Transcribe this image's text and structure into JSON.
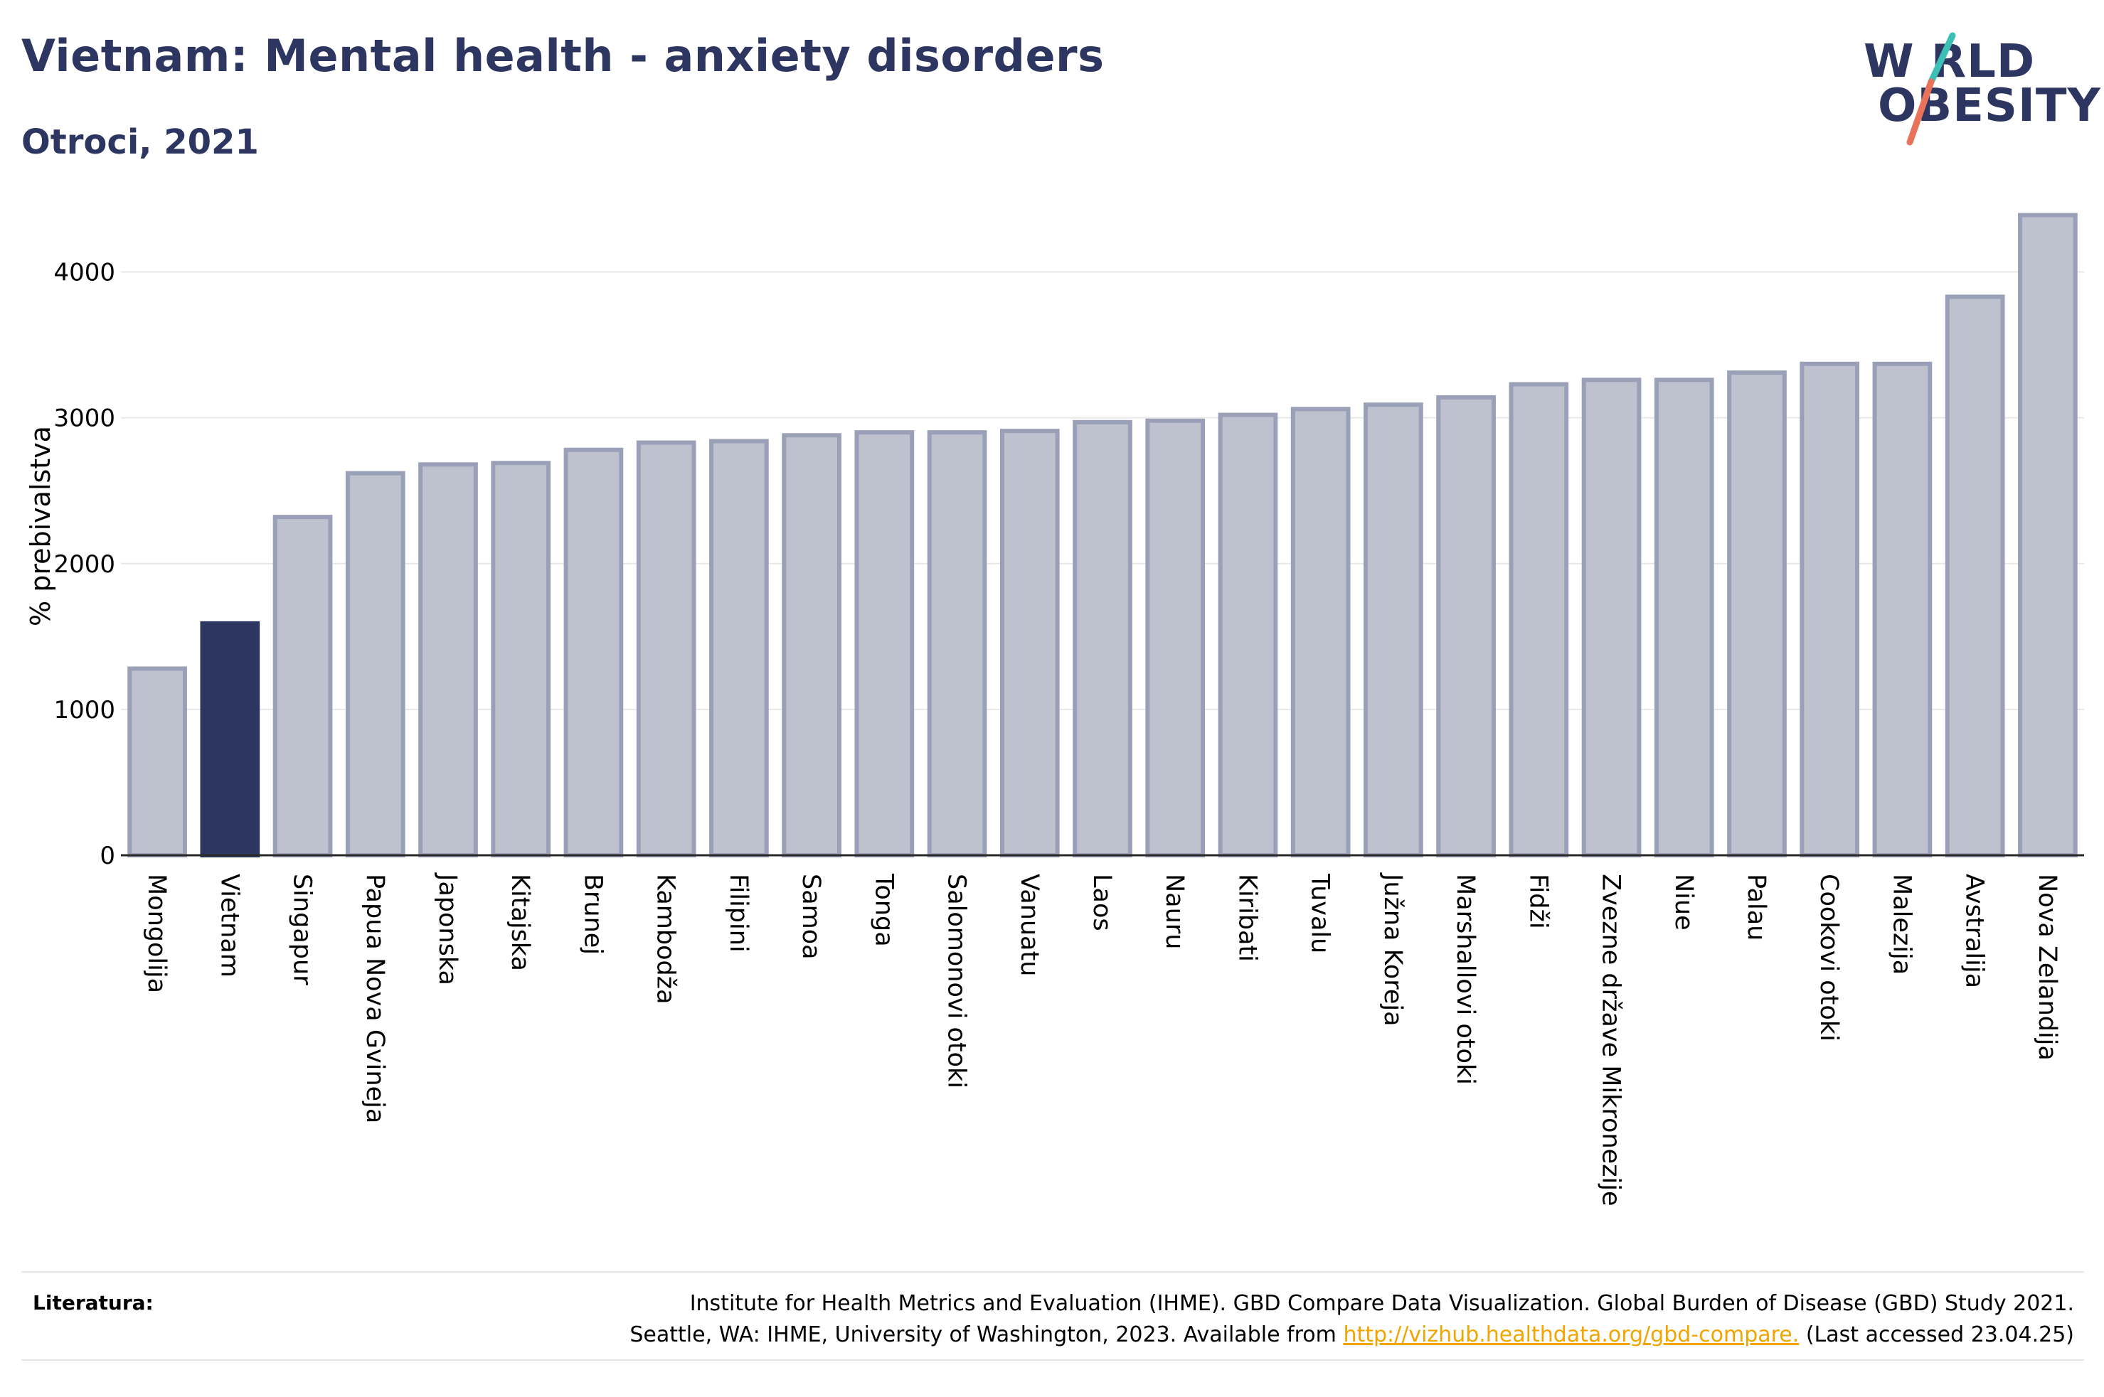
{
  "header": {
    "title": "Vietnam: Mental health - anxiety disorders",
    "subtitle": "Otroci, 2021"
  },
  "logo": {
    "line1": "W RLD",
    "line2": "OBESITY",
    "colors": {
      "navy": "#2d3561",
      "teal": "#3cbfb4",
      "coral": "#e8735a"
    }
  },
  "footer": {
    "label": "Literatura:",
    "line1": "Institute for Health Metrics and Evaluation (IHME). GBD Compare Data Visualization. Global Burden of Disease (GBD) Study 2021.",
    "line2_pre": "Seattle, WA: IHME, University of Washington, 2023. Available from",
    "link": "http://vizhub.healthdata.org/gbd-compare.",
    "line2_post": "(Last accessed 23.04.25)"
  },
  "chart_data": {
    "type": "bar",
    "ylabel": "% prebivalstva",
    "ylim": [
      0,
      4500
    ],
    "yticks": [
      0,
      1000,
      2000,
      3000,
      4000
    ],
    "grid": true,
    "highlight": "Vietnam",
    "colors": {
      "highlight": "#2d3561",
      "bar_fill": "#bec2ce",
      "bar_stroke": "#9aa0b8"
    },
    "categories": [
      "Mongolija",
      "Vietnam",
      "Singapur",
      "Papua Nova Gvineja",
      "Japonska",
      "Kitajska",
      "Brunej",
      "Kambodža",
      "Filipini",
      "Samoa",
      "Tonga",
      "Salomonovi otoki",
      "Vanuatu",
      "Laos",
      "Nauru",
      "Kiribati",
      "Tuvalu",
      "Južna Koreja",
      "Marshallovi otoki",
      "Fidži",
      "Zvezne države Mikronezije",
      "Niue",
      "Palau",
      "Cookovi otoki",
      "Malezija",
      "Avstralija",
      "Nova Zelandija"
    ],
    "values": [
      1280,
      1590,
      2320,
      2620,
      2680,
      2690,
      2780,
      2830,
      2840,
      2880,
      2900,
      2900,
      2910,
      2970,
      2980,
      3020,
      3060,
      3090,
      3140,
      3230,
      3260,
      3260,
      3310,
      3370,
      3370,
      3830,
      4390
    ]
  }
}
